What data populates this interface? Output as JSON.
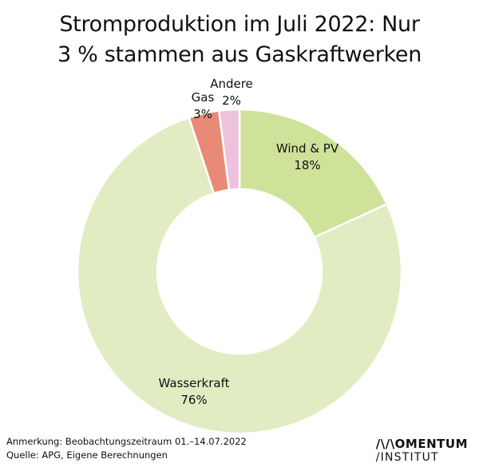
{
  "title_lines": [
    "Stromproduktion im Juli 2022: Nur",
    "3 % stammen aus Gaskraftwerken"
  ],
  "chart_data": {
    "type": "pie",
    "donut": true,
    "title": "Stromproduktion im Juli 2022: Nur 3 % stammen aus Gaskraftwerken",
    "slices": [
      {
        "name": "Wind & PV",
        "value": 18,
        "label": "18%",
        "color": "#cfe29a"
      },
      {
        "name": "Wasserkraft",
        "value": 76,
        "label": "76%",
        "color": "#e1ecc2"
      },
      {
        "name": "Gas",
        "value": 3,
        "label": "3%",
        "color": "#e98a77"
      },
      {
        "name": "Andere",
        "value": 2,
        "label": "2%",
        "color": "#eec2dd"
      }
    ]
  },
  "footer": {
    "note": "Anmerkung: Beobachtungszeitraum 01.–14.07.2022",
    "source": "Quelle: APG, Eigene Berechnungen"
  },
  "logo": {
    "line1": "/\\/\\OMENTUM",
    "line2": "/INSTITUT"
  }
}
